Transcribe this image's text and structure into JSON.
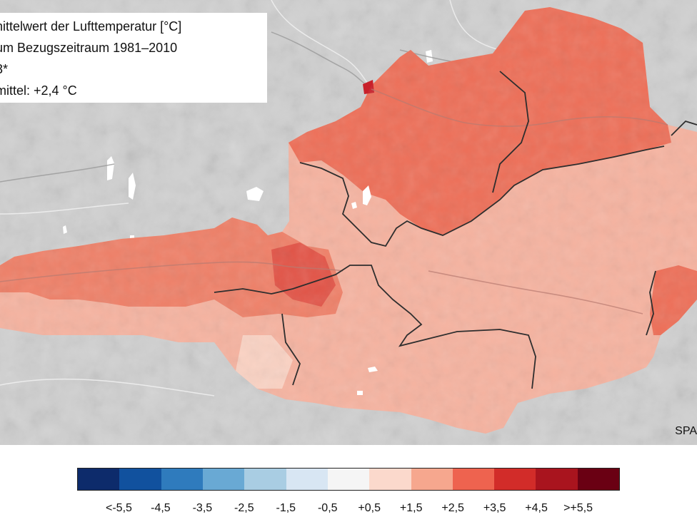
{
  "info": {
    "line1": "nittelwert der Lufttemperatur [°C]",
    "line2": "um Bezugszeitraum 1981–2010",
    "line3": "3*",
    "line4": "mittel: +2,4 °C"
  },
  "credit": "SPA",
  "legend": {
    "colors": [
      "#0d2b6b",
      "#11519e",
      "#2f7bbd",
      "#69a9d4",
      "#a9cde3",
      "#d8e6f3",
      "#f5f5f5",
      "#fbd9cc",
      "#f6a78e",
      "#ee634f",
      "#d22c29",
      "#a9141e",
      "#6a0013"
    ],
    "labels": [
      "<-5,5",
      "-4,5",
      "-3,5",
      "-2,5",
      "-1,5",
      "-0,5",
      "+0,5",
      "+1,5",
      "+2,5",
      "+3,5",
      "+4,5",
      ">+5,5"
    ]
  },
  "map": {
    "background_color": "#d2d2d2",
    "anomaly_colors": {
      "light": "#f6b3a0",
      "medium": "#f39880",
      "strong": "#ea6a55",
      "peak": "#c8202a",
      "pale": "#fbd9cc"
    },
    "border_color": "#2e2e2e",
    "river_color": "#8a8a8a"
  }
}
